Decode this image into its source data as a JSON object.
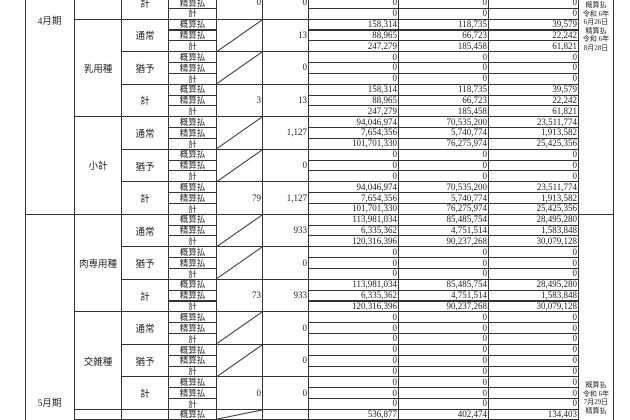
{
  "periods": [
    {
      "label": "4月期",
      "note": [
        "概算払",
        "令和 6年",
        "6月26日",
        "精算払",
        "令和 6年",
        "8月28日"
      ]
    },
    {
      "label": "5月期",
      "note": [
        "概算払",
        "令和 6年",
        "7月29日",
        "精算払"
      ]
    }
  ],
  "blocks": [
    {
      "category": "",
      "groups": [
        {
          "sub": "計",
          "diagonal": false,
          "headcount": "0",
          "count": "0",
          "rows": [
            [
              "概算払",
              "0",
              "0",
              "0"
            ],
            [
              "精算払",
              "0",
              "0",
              "0"
            ],
            [
              "計",
              "0",
              "0",
              "0"
            ]
          ]
        }
      ]
    },
    {
      "category": "乳用種",
      "groups": [
        {
          "sub": "通常",
          "diagonal": true,
          "headcount": "",
          "count": "13",
          "rows": [
            [
              "概算払",
              "158,314",
              "118,735",
              "39,579"
            ],
            [
              "精算払",
              "88,965",
              "66,723",
              "22,242"
            ],
            [
              "計",
              "247,279",
              "185,458",
              "61,821"
            ]
          ]
        },
        {
          "sub": "猶予",
          "diagonal": true,
          "headcount": "",
          "count": "0",
          "rows": [
            [
              "概算払",
              "0",
              "0",
              "0"
            ],
            [
              "精算払",
              "0",
              "0",
              "0"
            ],
            [
              "計",
              "0",
              "0",
              "0"
            ]
          ]
        },
        {
          "sub": "計",
          "diagonal": false,
          "headcount": "3",
          "count": "13",
          "rows": [
            [
              "概算払",
              "158,314",
              "118,735",
              "39,579"
            ],
            [
              "精算払",
              "88,965",
              "66,723",
              "22,242"
            ],
            [
              "計",
              "247,279",
              "185,458",
              "61,821"
            ]
          ]
        }
      ]
    },
    {
      "category": "小計",
      "groups": [
        {
          "sub": "通常",
          "diagonal": true,
          "headcount": "",
          "count": "1,127",
          "rows": [
            [
              "概算払",
              "94,046,974",
              "70,535,200",
              "23,511,774"
            ],
            [
              "精算払",
              "7,654,356",
              "5,740,774",
              "1,913,582"
            ],
            [
              "計",
              "101,701,330",
              "76,275,974",
              "25,425,356"
            ]
          ]
        },
        {
          "sub": "猶予",
          "diagonal": true,
          "headcount": "",
          "count": "0",
          "rows": [
            [
              "概算払",
              "0",
              "0",
              "0"
            ],
            [
              "精算払",
              "0",
              "0",
              "0"
            ],
            [
              "計",
              "0",
              "0",
              "0"
            ]
          ]
        },
        {
          "sub": "計",
          "diagonal": false,
          "headcount": "79",
          "count": "1,127",
          "rows": [
            [
              "概算払",
              "94,046,974",
              "70,535,200",
              "23,511,774"
            ],
            [
              "精算払",
              "7,654,356",
              "5,740,774",
              "1,913,582"
            ],
            [
              "計",
              "101,701,330",
              "76,275,974",
              "25,425,356"
            ]
          ]
        }
      ]
    },
    {
      "category": "肉専用種",
      "groups": [
        {
          "sub": "通常",
          "diagonal": true,
          "headcount": "",
          "count": "933",
          "rows": [
            [
              "概算払",
              "113,981,034",
              "85,485,754",
              "28,495,280"
            ],
            [
              "精算払",
              "6,335,362",
              "4,751,514",
              "1,583,848"
            ],
            [
              "計",
              "120,316,396",
              "90,237,268",
              "30,079,128"
            ]
          ]
        },
        {
          "sub": "猶予",
          "diagonal": true,
          "headcount": "",
          "count": "0",
          "rows": [
            [
              "概算払",
              "0",
              "0",
              "0"
            ],
            [
              "精算払",
              "0",
              "0",
              "0"
            ],
            [
              "計",
              "0",
              "0",
              "0"
            ]
          ]
        },
        {
          "sub": "計",
          "diagonal": false,
          "headcount": "73",
          "count": "933",
          "rows": [
            [
              "概算払",
              "113,981,034",
              "85,485,754",
              "28,495,280"
            ],
            [
              "精算払",
              "6,335,362",
              "4,751,514",
              "1,583,848"
            ],
            [
              "計",
              "120,316,396",
              "90,237,268",
              "30,079,128"
            ]
          ]
        }
      ]
    },
    {
      "category": "交雑種",
      "groups": [
        {
          "sub": "通常",
          "diagonal": true,
          "headcount": "",
          "count": "0",
          "rows": [
            [
              "概算払",
              "0",
              "0",
              "0"
            ],
            [
              "精算払",
              "0",
              "0",
              "0"
            ],
            [
              "計",
              "0",
              "0",
              "0"
            ]
          ]
        },
        {
          "sub": "猶予",
          "diagonal": true,
          "headcount": "",
          "count": "0",
          "rows": [
            [
              "概算払",
              "0",
              "0",
              "0"
            ],
            [
              "精算払",
              "0",
              "0",
              "0"
            ],
            [
              "計",
              "0",
              "0",
              "0"
            ]
          ]
        },
        {
          "sub": "計",
          "diagonal": false,
          "headcount": "0",
          "count": "0",
          "rows": [
            [
              "概算払",
              "0",
              "0",
              "0"
            ],
            [
              "精算払",
              "0",
              "0",
              "0"
            ],
            [
              "計",
              "0",
              "0",
              "0"
            ]
          ]
        }
      ]
    },
    {
      "category": "",
      "groups": [
        {
          "sub": "",
          "diagonal": true,
          "headcount": "",
          "count": "",
          "rows": [
            [
              "概算払",
              "536,877",
              "402,474",
              "134,403"
            ]
          ]
        }
      ]
    }
  ]
}
